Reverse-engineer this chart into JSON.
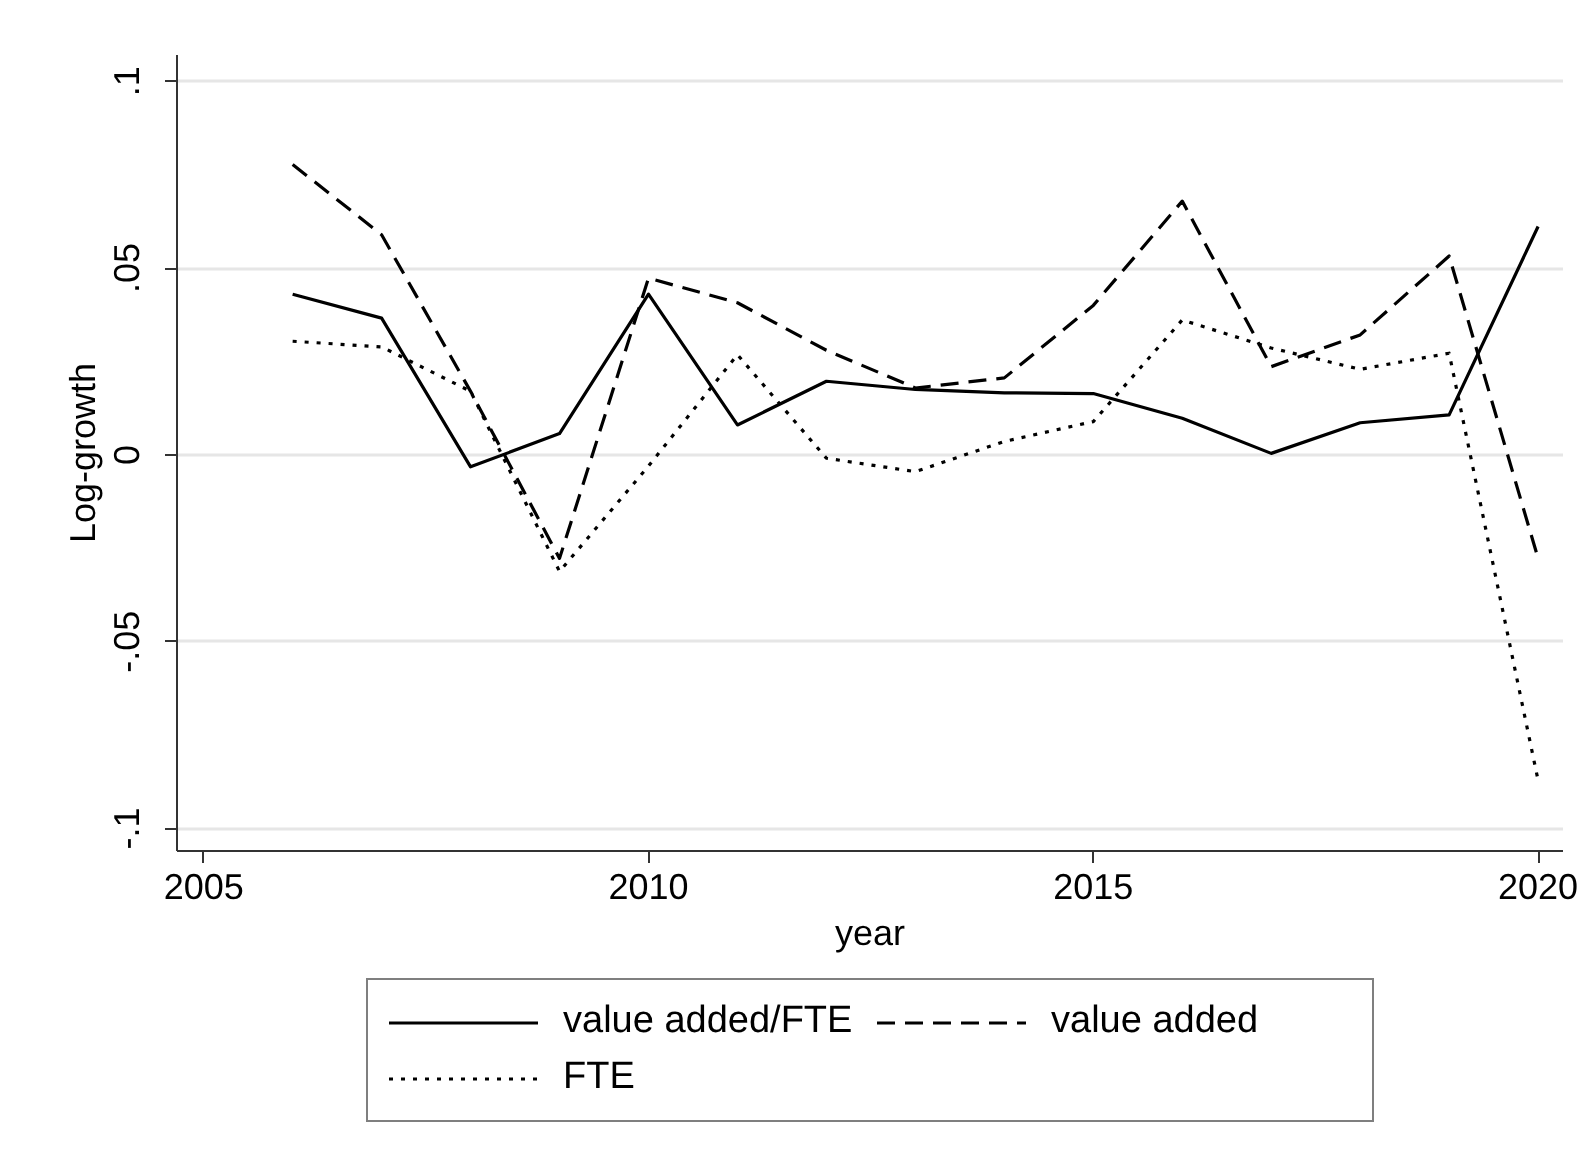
{
  "chart_data": {
    "type": "line",
    "xlabel": "year",
    "ylabel": "Log-growth",
    "x": [
      2006,
      2007,
      2008,
      2009,
      2010,
      2011,
      2012,
      2013,
      2014,
      2015,
      2016,
      2017,
      2018,
      2019,
      2020
    ],
    "series": [
      {
        "name": "value added/FTE",
        "color": "#000000",
        "line_style": "solid",
        "values": [
          0.043,
          0.0366,
          -0.0032,
          0.0057,
          0.043,
          0.008,
          0.0197,
          0.0175,
          0.0166,
          0.0164,
          0.0098,
          0.0004,
          0.0086,
          0.0107,
          0.0611
        ]
      },
      {
        "name": "value added",
        "color": "#000000",
        "line_style": "dashed",
        "values": [
          0.0777,
          0.0589,
          0.017,
          -0.0277,
          0.0473,
          0.0407,
          0.028,
          0.0179,
          0.0206,
          0.04,
          0.0679,
          0.0236,
          0.0321,
          0.0532,
          -0.0277
        ]
      },
      {
        "name": "FTE",
        "color": "#000000",
        "line_style": "dotted",
        "values": [
          0.0304,
          0.0289,
          0.017,
          -0.0312,
          -0.003,
          0.0268,
          -0.0009,
          -0.0045,
          0.0036,
          0.0089,
          0.0361,
          0.0286,
          0.0229,
          0.0272,
          -0.0871
        ]
      }
    ],
    "xlim": [
      2004.7,
      2020.28
    ],
    "ylim": [
      -0.106,
      0.107
    ],
    "xticks": [
      2005,
      2010,
      2015,
      2020
    ],
    "yticks": [
      {
        "value": -0.1,
        "label": "-.1"
      },
      {
        "value": -0.05,
        "label": "-.05"
      },
      0,
      {
        "value": 0.05,
        "label": ".05"
      },
      {
        "value": 0.1,
        "label": ".1"
      }
    ],
    "grid": "y",
    "legend": "bottom"
  }
}
